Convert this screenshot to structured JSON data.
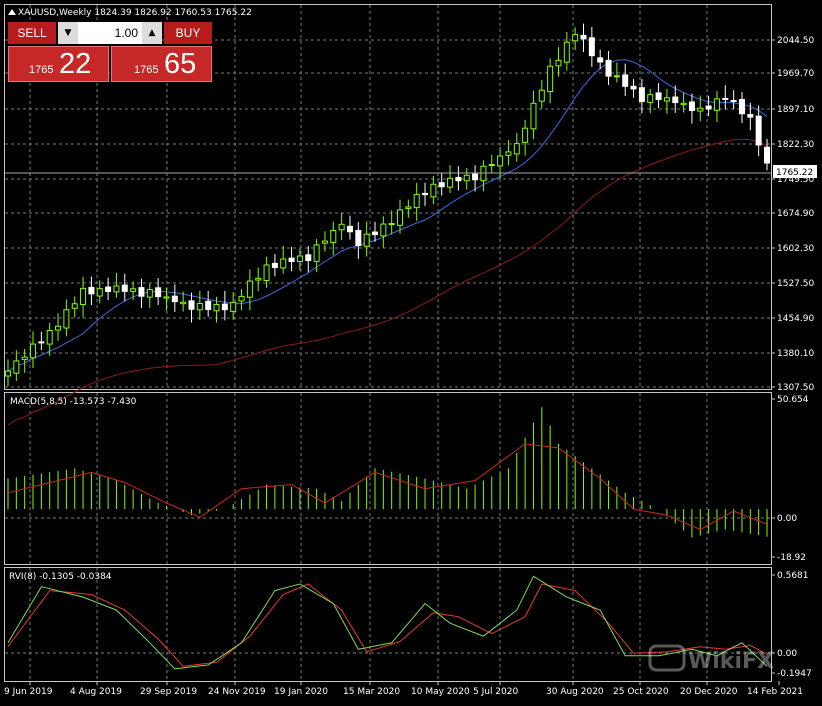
{
  "header": {
    "symbol_info": "XAUUSD,Weekly  1824.39 1826.92 1760.53 1765.22"
  },
  "trade_panel": {
    "sell_label": "SELL",
    "buy_label": "BUY",
    "lot_size": "1.00",
    "sell_price_prefix": "1765",
    "sell_price_main": "22",
    "buy_price_prefix": "1765",
    "buy_price_main": "65"
  },
  "price_axis": {
    "ticks": [
      "2044.50",
      "1969.70",
      "1897.10",
      "1822.30",
      "1749.50",
      "1674.90",
      "1602.30",
      "1527.50",
      "1454.90",
      "1380.10",
      "1307.50"
    ],
    "current_price": "1765.22"
  },
  "macd_panel": {
    "title": "MACD(5,8,5) -13.573 -7.430",
    "ticks": [
      "50.654",
      "0.00",
      "-18.92"
    ]
  },
  "rvi_panel": {
    "title": "RVI(8) -0.1305 -0.0384",
    "ticks": [
      "0.5681",
      "0.00",
      "-0.1947"
    ]
  },
  "time_axis": {
    "labels": [
      "9 Jun 2019",
      "4 Aug 2019",
      "29 Sep 2019",
      "24 Nov 2019",
      "19 Jan 2020",
      "15 Mar 2020",
      "10 May 2020",
      "5 Jul 2020",
      "30 Aug 2020",
      "25 Oct 2020",
      "20 Dec 2020",
      "14 Feb 2021"
    ]
  },
  "watermark": "WikiFX",
  "colors": {
    "bull": "#7fff00",
    "bear": "#ffffff",
    "ma_fast": "#4169e1",
    "ma_slow": "#8b1a1a",
    "macd_hist": "#7fff00",
    "macd_signal": "#cc2a1a",
    "rvi_main": "#7ed957",
    "rvi_signal": "#e53935",
    "grid": "#7a7a7a",
    "trade_red": "#c62828"
  },
  "chart_data": [
    {
      "type": "candlestick",
      "title": "XAUUSD,Weekly",
      "ylim": [
        1307.5,
        2080
      ],
      "ohlc_last": [
        1824.39,
        1826.92,
        1760.53,
        1765.22
      ],
      "x": [
        "9 Jun 2019",
        "4 Aug 2019",
        "29 Sep 2019",
        "24 Nov 2019",
        "19 Jan 2020",
        "15 Mar 2020",
        "10 May 2020",
        "5 Jul 2020",
        "30 Aug 2020",
        "25 Oct 2020",
        "20 Dec 2020",
        "14 Feb 2021"
      ],
      "close_approx": [
        1340,
        1500,
        1505,
        1465,
        1555,
        1560,
        1720,
        1800,
        1960,
        1905,
        1880,
        1765
      ]
    },
    {
      "type": "bar",
      "title": "MACD(5,8,5)",
      "values_last": [
        -13.573,
        -7.43
      ],
      "ylim": [
        -18.92,
        50.654
      ]
    },
    {
      "type": "line",
      "title": "RVI(8)",
      "values_last": [
        -0.1305,
        -0.0384
      ],
      "ylim": [
        -0.1947,
        0.5681
      ]
    }
  ]
}
